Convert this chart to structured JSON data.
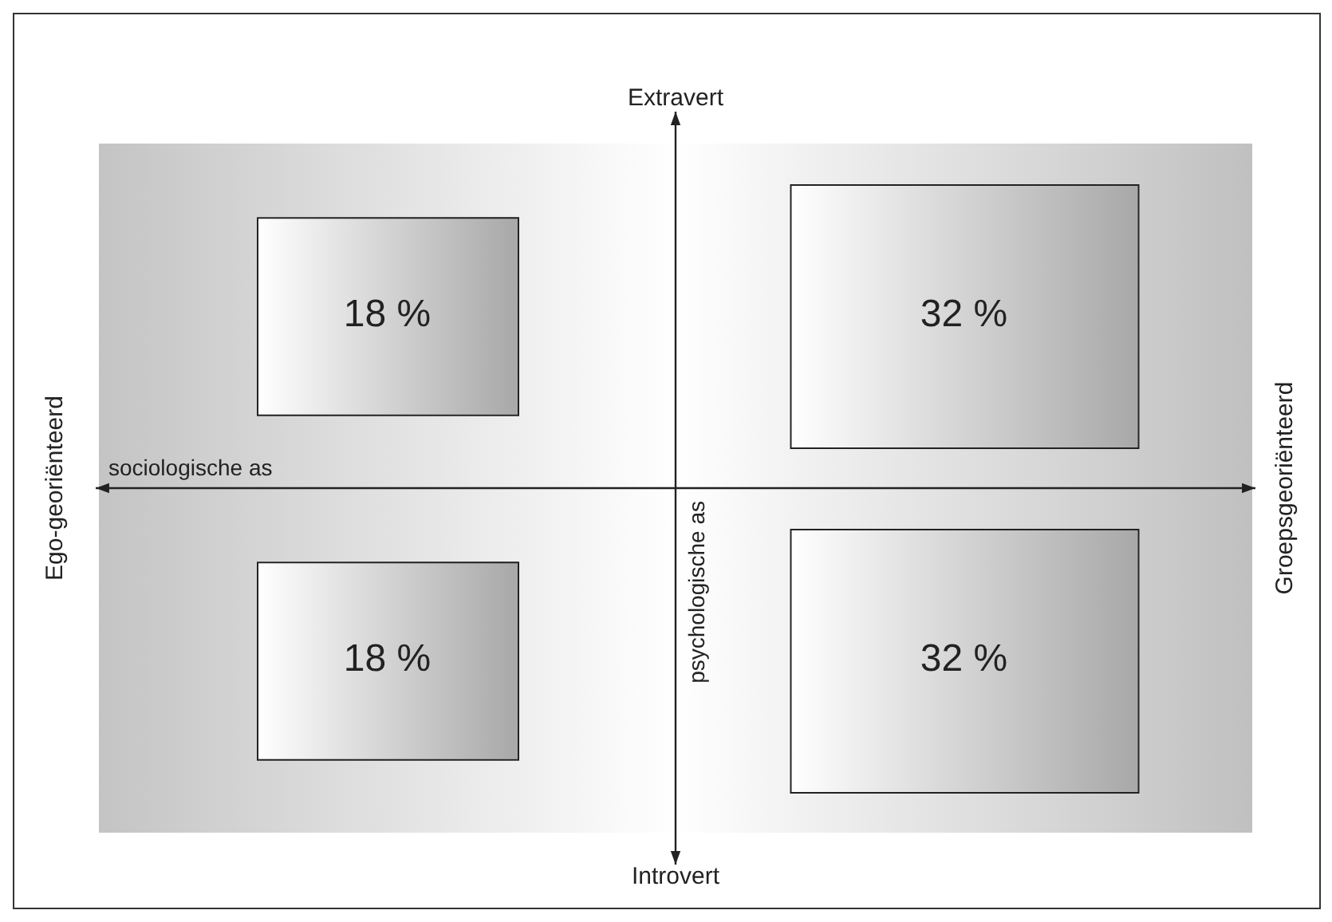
{
  "chart_data": {
    "type": "heatmap",
    "categories": [
      "Ego-georiënteerd",
      "Groepsgeoriënteerd"
    ],
    "y_categories": [
      "Extravert",
      "Introvert"
    ],
    "cells": [
      [
        18,
        32
      ],
      [
        18,
        32
      ]
    ],
    "cell_labels": [
      [
        "18 %",
        "32 %"
      ],
      [
        "18 %",
        "32 %"
      ]
    ],
    "annotations": [
      "sociologische as",
      "psychologische as"
    ]
  }
}
